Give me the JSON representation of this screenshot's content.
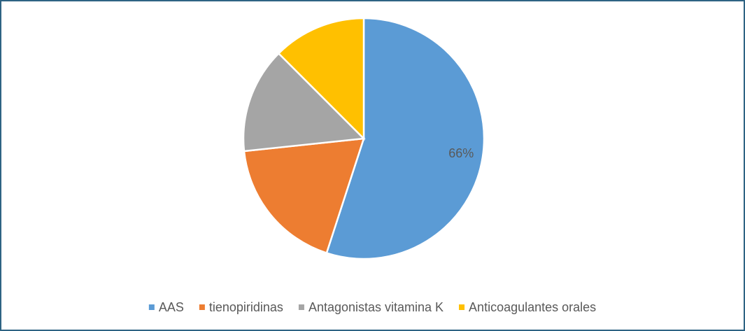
{
  "chart_data": {
    "type": "pie",
    "categories": [
      "AAS",
      "tienopiridinas",
      "Antagonistas vitamina K",
      "Anticoagulantes orales"
    ],
    "values": [
      66,
      22,
      17,
      15
    ],
    "value_labels": [
      "66%",
      null,
      null,
      null
    ],
    "colors": [
      "#5b9bd5",
      "#ed7d31",
      "#a5a5a5",
      "#ffc000"
    ],
    "legend": "bottom"
  }
}
